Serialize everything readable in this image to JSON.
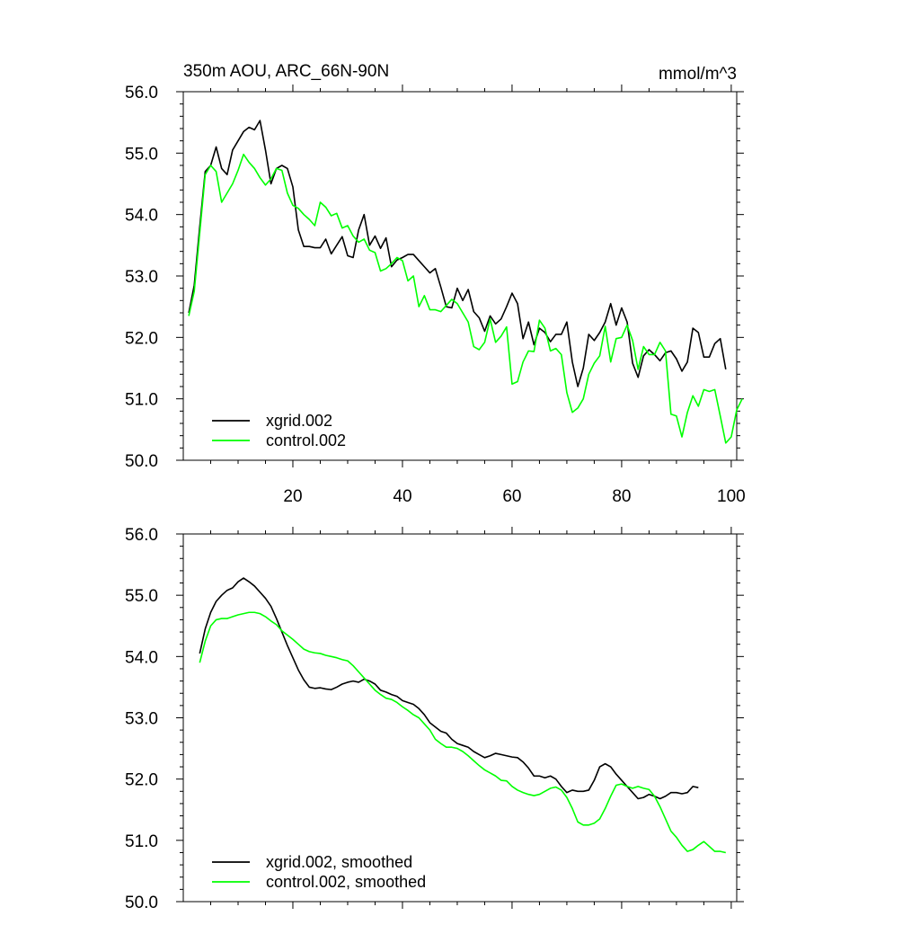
{
  "chart_data": [
    {
      "type": "line",
      "title": "350m AOU, ARC_66N-90N",
      "units": "mmol/m^3",
      "ylim": [
        50.0,
        56.0
      ],
      "xlim": [
        0,
        101
      ],
      "yticks": [
        "50.0",
        "51.0",
        "52.0",
        "53.0",
        "54.0",
        "55.0",
        "56.0"
      ],
      "xticks": [
        "20",
        "40",
        "60",
        "80",
        "100"
      ],
      "legend_position": "bottom-left",
      "series": [
        {
          "name": "xgrid.002",
          "color": "#000000",
          "x_start": 1,
          "values": [
            52.4,
            52.85,
            53.8,
            54.7,
            54.8,
            55.1,
            54.75,
            54.65,
            55.05,
            55.2,
            55.35,
            55.42,
            55.38,
            55.53,
            55.05,
            54.5,
            54.75,
            54.8,
            54.75,
            54.45,
            53.75,
            53.48,
            53.48,
            53.46,
            53.46,
            53.6,
            53.36,
            53.5,
            53.64,
            53.33,
            53.3,
            53.75,
            54.0,
            53.5,
            53.65,
            53.45,
            53.62,
            53.15,
            53.26,
            53.3,
            53.35,
            53.35,
            53.25,
            53.15,
            53.05,
            53.12,
            52.82,
            52.5,
            52.48,
            52.8,
            52.6,
            52.78,
            52.42,
            52.32,
            52.1,
            52.35,
            52.22,
            52.3,
            52.5,
            52.72,
            52.55,
            51.98,
            52.25,
            51.88,
            52.15,
            52.08,
            51.93,
            52.05,
            52.05,
            52.25,
            51.6,
            51.2,
            51.5,
            52.05,
            51.95,
            52.08,
            52.25,
            52.55,
            52.2,
            52.48,
            52.25,
            51.58,
            51.35,
            51.7,
            51.8,
            51.72,
            51.62,
            51.75,
            51.78,
            51.65,
            51.45,
            51.6,
            52.15,
            52.08,
            51.68,
            51.68,
            51.9,
            51.98,
            51.48
          ]
        },
        {
          "name": "control.002",
          "color": "#00ff00",
          "x_start": 1,
          "values": [
            52.35,
            52.75,
            53.7,
            54.65,
            54.8,
            54.7,
            54.2,
            54.35,
            54.5,
            54.72,
            54.98,
            54.85,
            54.75,
            54.6,
            54.48,
            54.58,
            54.75,
            54.72,
            54.35,
            54.15,
            54.1,
            54.0,
            53.92,
            53.82,
            54.2,
            54.12,
            53.98,
            54.02,
            53.78,
            53.82,
            53.65,
            53.55,
            53.6,
            53.42,
            53.38,
            53.08,
            53.12,
            53.2,
            53.3,
            53.25,
            52.92,
            53.0,
            52.5,
            52.68,
            52.45,
            52.45,
            52.42,
            52.52,
            52.62,
            52.55,
            52.4,
            52.25,
            51.85,
            51.8,
            51.92,
            52.3,
            51.92,
            52.02,
            52.17,
            51.24,
            51.28,
            51.6,
            51.78,
            51.77,
            52.28,
            52.15,
            51.78,
            51.82,
            51.72,
            51.1,
            50.78,
            50.85,
            51.0,
            51.4,
            51.58,
            51.7,
            52.18,
            51.6,
            51.98,
            52.0,
            52.2,
            51.95,
            51.48,
            51.85,
            51.72,
            51.72,
            51.92,
            51.78,
            50.75,
            50.72,
            50.38,
            50.78,
            51.05,
            50.88,
            51.15,
            51.12,
            51.15,
            50.72,
            50.28,
            50.38,
            50.82,
            51.0
          ]
        }
      ]
    },
    {
      "type": "line",
      "title": "",
      "ylim": [
        50.0,
        56.0
      ],
      "xlim": [
        0,
        101
      ],
      "yticks": [
        "50.0",
        "51.0",
        "52.0",
        "53.0",
        "54.0",
        "55.0",
        "56.0"
      ],
      "xticks": [],
      "legend_position": "bottom-left",
      "series": [
        {
          "name": "xgrid.002, smoothed",
          "color": "#000000",
          "x_start": 3,
          "values": [
            54.05,
            54.45,
            54.72,
            54.9,
            55.0,
            55.08,
            55.12,
            55.22,
            55.28,
            55.22,
            55.15,
            55.05,
            54.95,
            54.82,
            54.62,
            54.4,
            54.18,
            53.98,
            53.78,
            53.62,
            53.5,
            53.48,
            53.49,
            53.47,
            53.46,
            53.5,
            53.55,
            53.58,
            53.6,
            53.58,
            53.63,
            53.6,
            53.55,
            53.45,
            53.42,
            53.38,
            53.35,
            53.28,
            53.25,
            53.22,
            53.15,
            53.05,
            52.92,
            52.85,
            52.78,
            52.75,
            52.65,
            52.58,
            52.55,
            52.52,
            52.45,
            52.4,
            52.35,
            52.38,
            52.42,
            52.4,
            52.38,
            52.36,
            52.35,
            52.28,
            52.18,
            52.05,
            52.05,
            52.02,
            52.05,
            52.0,
            51.88,
            51.78,
            51.82,
            51.8,
            51.8,
            51.82,
            51.98,
            52.2,
            52.25,
            52.2,
            52.08,
            51.98,
            51.88,
            51.78,
            51.68,
            51.7,
            51.75,
            51.72,
            51.68,
            51.72,
            51.78,
            51.78,
            51.76,
            51.78,
            51.88,
            51.86
          ]
        },
        {
          "name": "control.002, smoothed",
          "color": "#00ff00",
          "x_start": 3,
          "values": [
            53.9,
            54.25,
            54.5,
            54.6,
            54.62,
            54.62,
            54.65,
            54.68,
            54.7,
            54.72,
            54.72,
            54.7,
            54.65,
            54.58,
            54.52,
            54.42,
            54.35,
            54.28,
            54.2,
            54.12,
            54.08,
            54.06,
            54.05,
            54.02,
            54.0,
            53.98,
            53.95,
            53.93,
            53.85,
            53.75,
            53.65,
            53.55,
            53.45,
            53.38,
            53.32,
            53.3,
            53.25,
            53.18,
            53.12,
            53.05,
            53.0,
            52.9,
            52.8,
            52.65,
            52.58,
            52.52,
            52.52,
            52.5,
            52.45,
            52.38,
            52.3,
            52.22,
            52.15,
            52.1,
            52.05,
            51.98,
            51.97,
            51.88,
            51.82,
            51.78,
            51.75,
            51.73,
            51.75,
            51.8,
            51.85,
            51.87,
            51.82,
            51.7,
            51.52,
            51.3,
            51.25,
            51.25,
            51.28,
            51.35,
            51.52,
            51.72,
            51.9,
            51.92,
            51.88,
            51.85,
            51.88,
            51.85,
            51.83,
            51.72,
            51.55,
            51.35,
            51.15,
            51.05,
            50.92,
            50.82,
            50.85,
            50.92,
            50.98,
            50.9,
            50.82,
            50.82,
            50.8
          ]
        }
      ]
    }
  ]
}
